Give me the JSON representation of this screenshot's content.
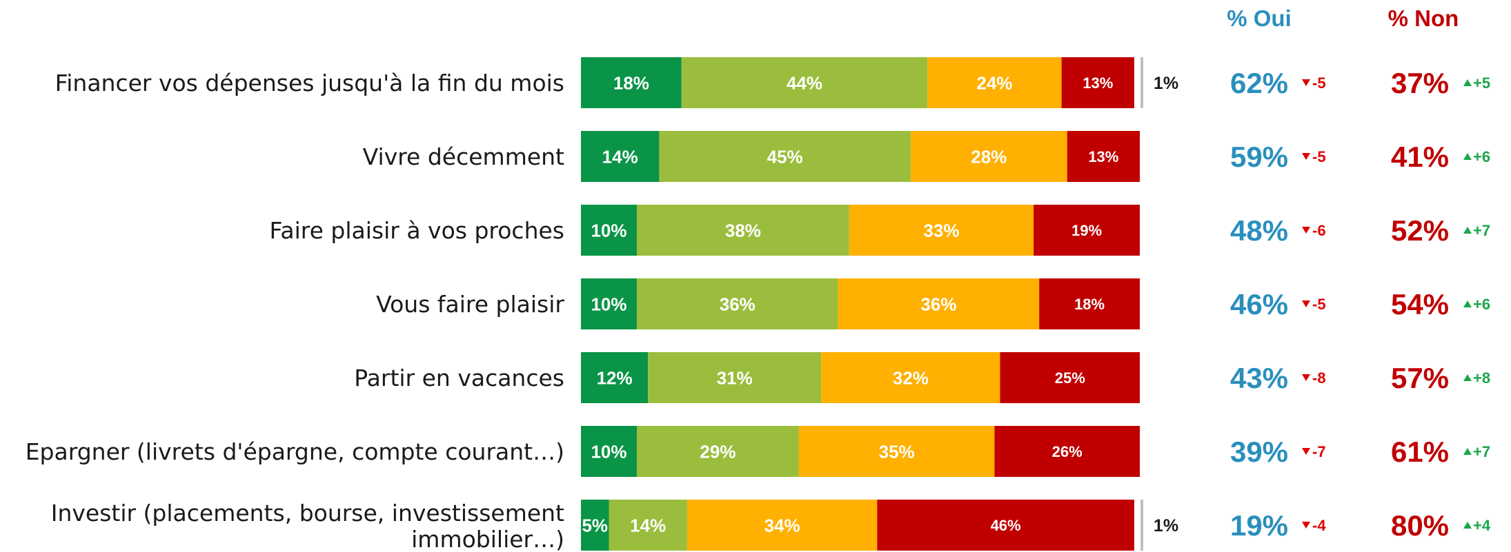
{
  "colors": {
    "very_much": "#0a9447",
    "somewhat": "#9bbd3d",
    "not_really": "#ffb000",
    "not_at_all": "#c00000",
    "marker": "#bfbfbf",
    "oui": "#2a8fbd",
    "non": "#c00000",
    "delta_down": "#e00000",
    "delta_up": "#1aa64a"
  },
  "headers": {
    "oui": "% Oui",
    "non": "% Non"
  },
  "chart_data": {
    "type": "bar",
    "orientation": "horizontal",
    "stacked": true,
    "categories": [
      [
        "Financer vos dépenses jusqu'à la fin du mois"
      ],
      [
        "Vivre décemment"
      ],
      [
        "Faire plaisir à vos proches"
      ],
      [
        "Vous faire plaisir"
      ],
      [
        "Partir en vacances"
      ],
      [
        "Epargner (livrets d'épargne, compte courant…)"
      ],
      [
        "Investir (placements, bourse, investissement",
        "immobilier…)"
      ]
    ],
    "series": [
      {
        "color_key": "very_much",
        "values": [
          18,
          14,
          10,
          10,
          12,
          10,
          5
        ],
        "labels": [
          "18%",
          "14%",
          "10%",
          "10%",
          "12%",
          "10%",
          "5%"
        ]
      },
      {
        "color_key": "somewhat",
        "values": [
          44,
          45,
          38,
          36,
          31,
          29,
          14
        ],
        "labels": [
          "44%",
          "45%",
          "38%",
          "36%",
          "31%",
          "29%",
          "14%"
        ]
      },
      {
        "color_key": "not_really",
        "values": [
          24,
          28,
          33,
          36,
          32,
          35,
          34
        ],
        "labels": [
          "24%",
          "28%",
          "33%",
          "36%",
          "32%",
          "35%",
          "34%"
        ]
      },
      {
        "color_key": "not_at_all",
        "values": [
          13,
          13,
          19,
          18,
          25,
          26,
          46
        ],
        "labels": [
          "13%",
          "13%",
          "19%",
          "18%",
          "25%",
          "26%",
          "46%"
        ]
      }
    ],
    "remainder": {
      "values": [
        1,
        0,
        0,
        0,
        0,
        0,
        1
      ],
      "labels": [
        "1%",
        "",
        "",
        "",
        "",
        "",
        "1%"
      ]
    },
    "oui": [
      "62%",
      "59%",
      "48%",
      "46%",
      "43%",
      "39%",
      "19%"
    ],
    "oui_delta": [
      "-5",
      "-5",
      "-6",
      "-5",
      "-8",
      "-7",
      "-4"
    ],
    "non": [
      "37%",
      "41%",
      "52%",
      "54%",
      "57%",
      "61%",
      "80%"
    ],
    "non_delta": [
      "+5",
      "+6",
      "+7",
      "+6",
      "+8",
      "+7",
      "+4"
    ],
    "xlim": [
      0,
      100
    ],
    "legend": "none"
  }
}
